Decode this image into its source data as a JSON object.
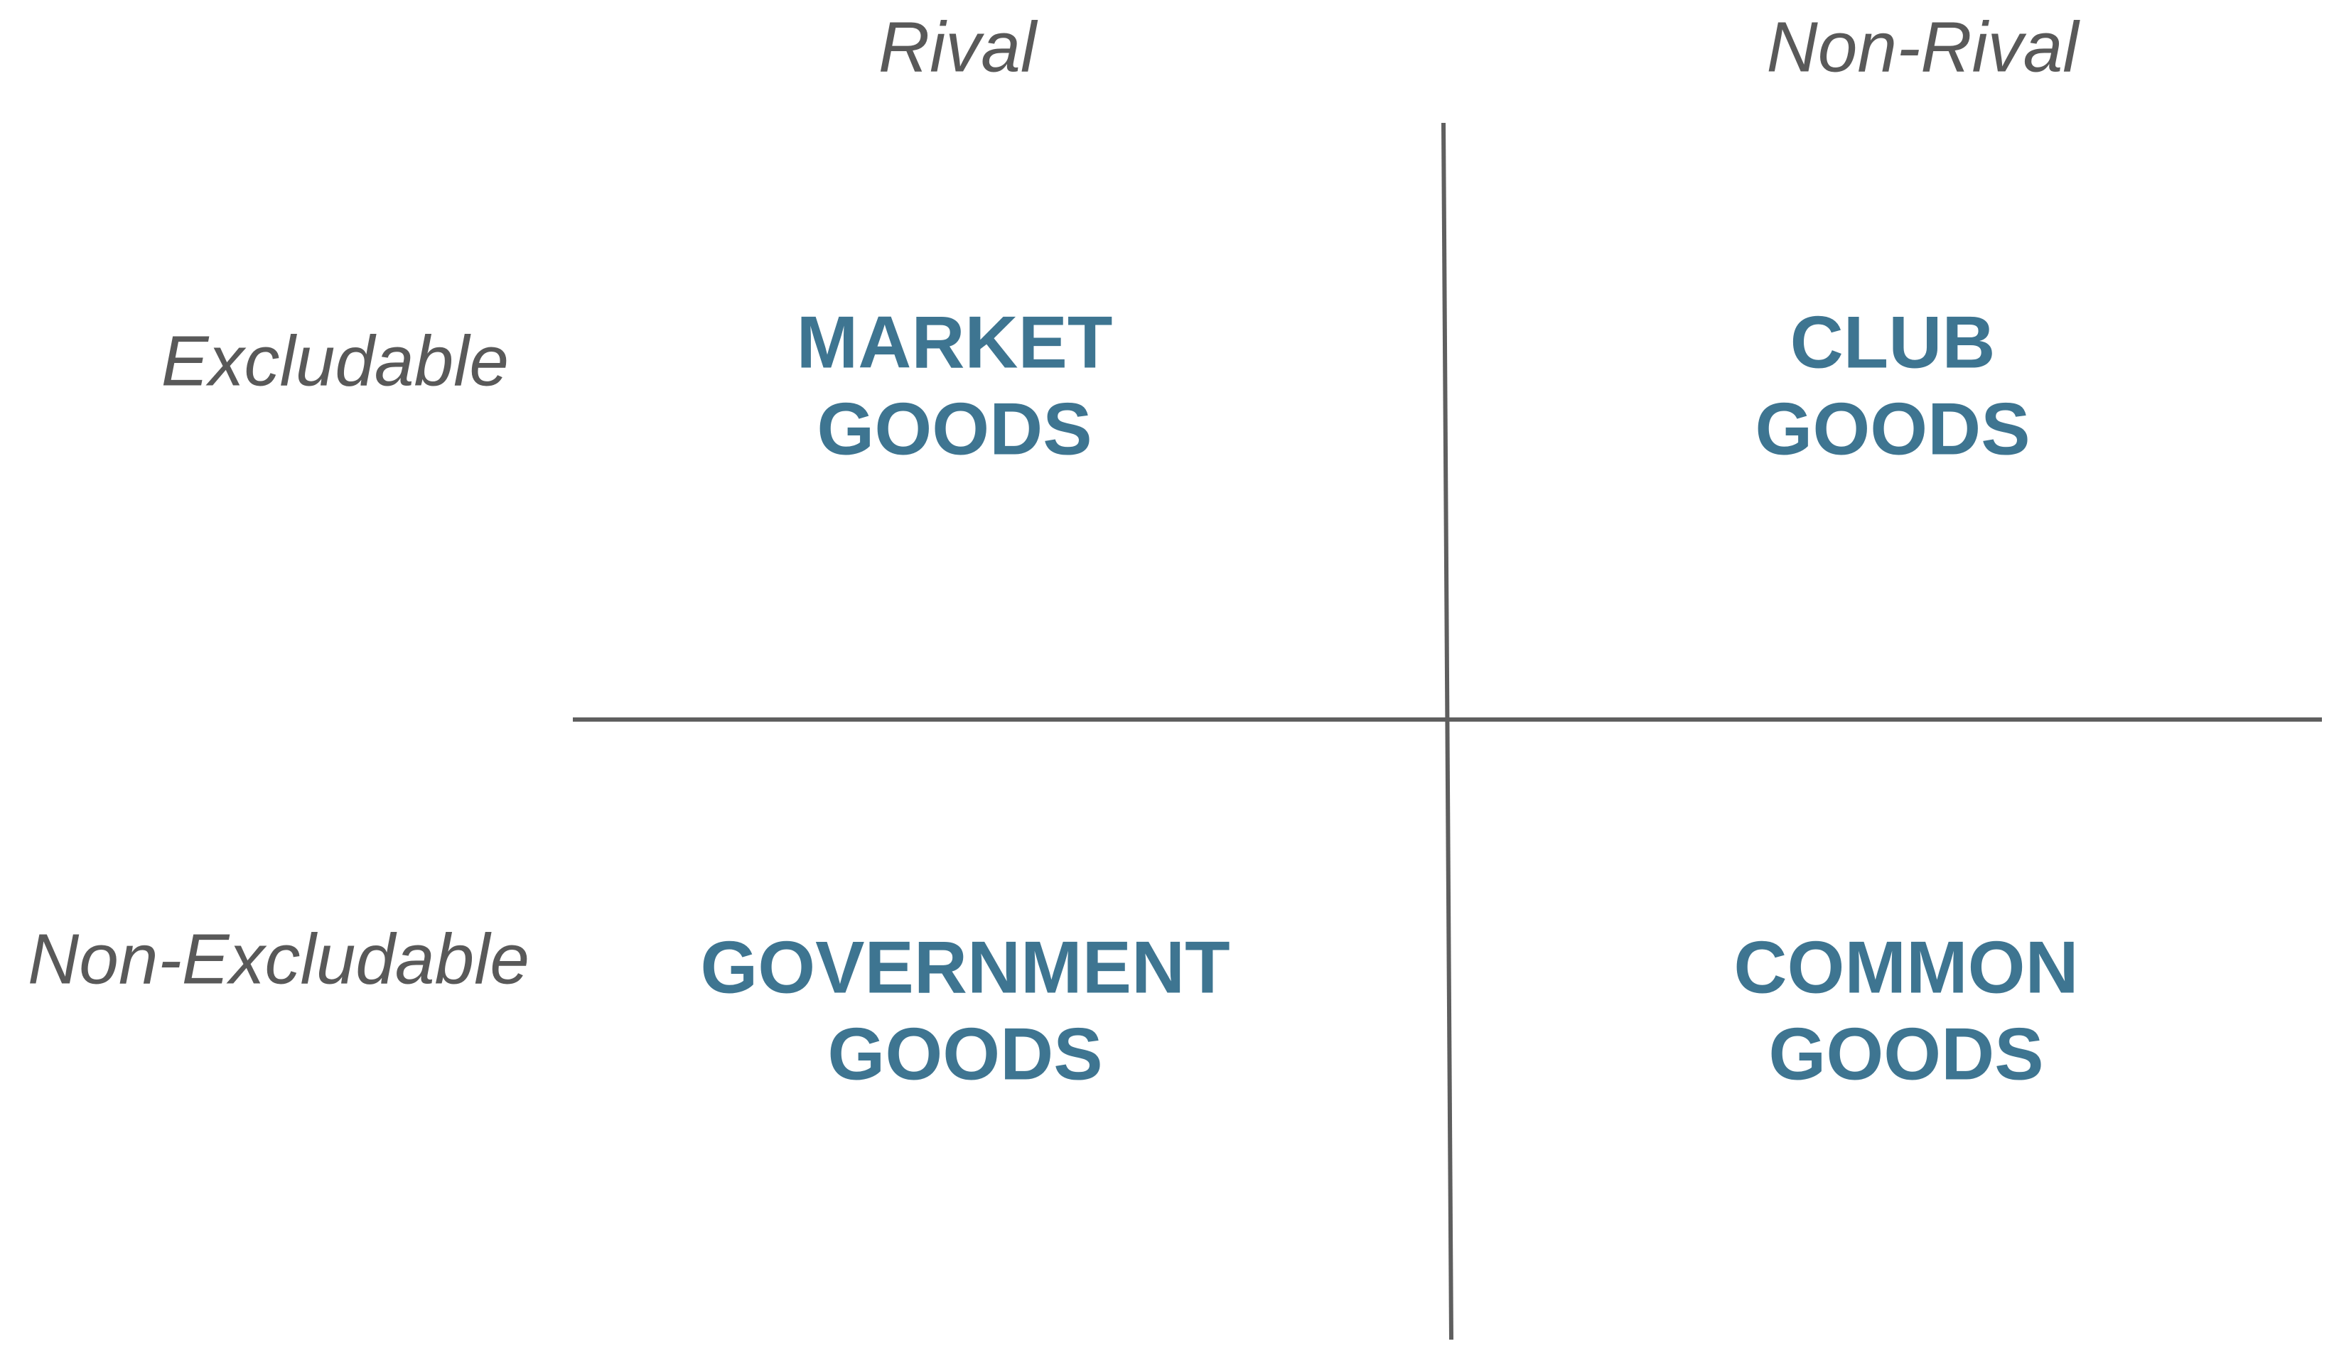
{
  "columns": [
    "Rival",
    "Non-Rival"
  ],
  "rows": [
    "Excludable",
    "Non-Excludable"
  ],
  "cells": [
    [
      [
        "MARKET",
        "GOODS"
      ],
      [
        "CLUB",
        "GOODS"
      ]
    ],
    [
      [
        "GOVERNMENT",
        "GOODS"
      ],
      [
        "COMMON",
        "GOODS"
      ]
    ]
  ]
}
